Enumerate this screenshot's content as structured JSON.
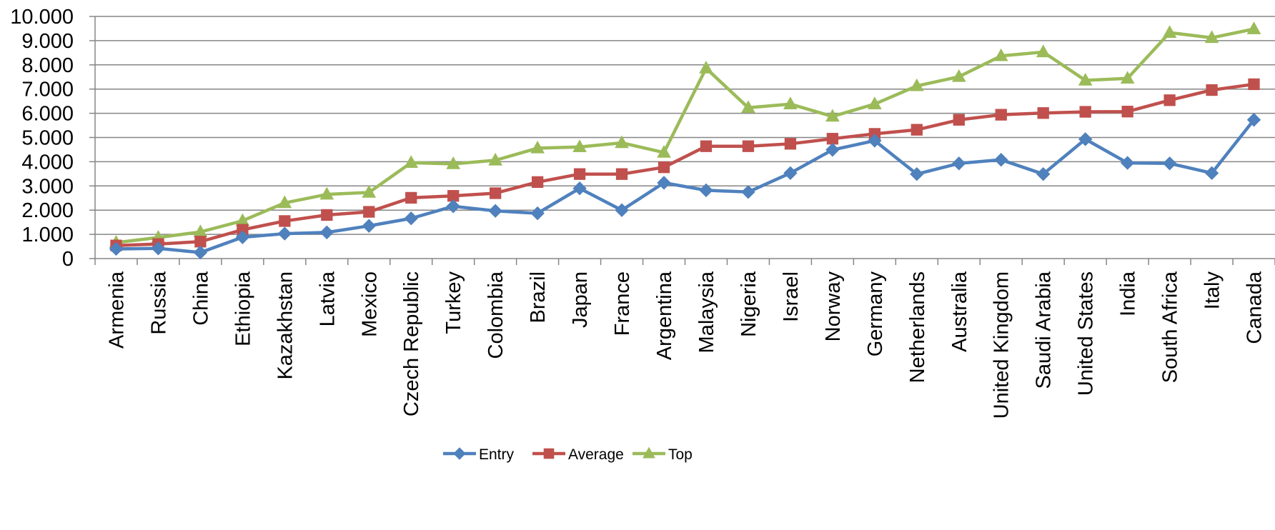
{
  "chart_data": {
    "type": "line",
    "title": "",
    "xlabel": "",
    "ylabel": "",
    "ylim": [
      0,
      10000
    ],
    "ytick_values": [
      0,
      1000,
      2000,
      3000,
      4000,
      5000,
      6000,
      7000,
      8000,
      9000,
      10000
    ],
    "ytick_labels": [
      "0",
      "1.000",
      "2.000",
      "3.000",
      "4.000",
      "5.000",
      "6.000",
      "7.000",
      "8.000",
      "9.000",
      "10.000"
    ],
    "grid": true,
    "legend_position": "bottom",
    "categories": [
      "Armenia",
      "Russia",
      "China",
      "Ethiopia",
      "Kazakhstan",
      "Latvia",
      "Mexico",
      "Czech Republic",
      "Turkey",
      "Colombia",
      "Brazil",
      "Japan",
      "France",
      "Argentina",
      "Malaysia",
      "Nigeria",
      "Israel",
      "Norway",
      "Germany",
      "Netherlands",
      "Australia",
      "United Kingdom",
      "Saudi Arabia",
      "United States",
      "India",
      "South Africa",
      "Italy",
      "Canada"
    ],
    "series": [
      {
        "name": "Entry",
        "color": "#4F81BD",
        "marker": "diamond",
        "values": [
          400,
          420,
          250,
          880,
          1030,
          1080,
          1350,
          1660,
          2160,
          1970,
          1870,
          2900,
          2000,
          3130,
          2820,
          2750,
          3530,
          4490,
          4870,
          3490,
          3930,
          4080,
          3490,
          4930,
          3950,
          3930,
          3530,
          5730
        ]
      },
      {
        "name": "Average",
        "color": "#C0504D",
        "marker": "square",
        "values": [
          540,
          600,
          700,
          1190,
          1550,
          1800,
          1930,
          2510,
          2590,
          2700,
          3160,
          3490,
          3490,
          3770,
          4640,
          4640,
          4740,
          4950,
          5150,
          5320,
          5730,
          5940,
          6010,
          6060,
          6070,
          6540,
          6960,
          7200
        ]
      },
      {
        "name": "Top",
        "color": "#9BBB59",
        "marker": "triangle",
        "values": [
          660,
          870,
          1100,
          1560,
          2300,
          2650,
          2730,
          3960,
          3910,
          4060,
          4560,
          4610,
          4780,
          4380,
          7860,
          6230,
          6380,
          5870,
          6380,
          7130,
          7510,
          8370,
          8530,
          7360,
          7440,
          9330,
          9120,
          9480
        ]
      }
    ]
  }
}
